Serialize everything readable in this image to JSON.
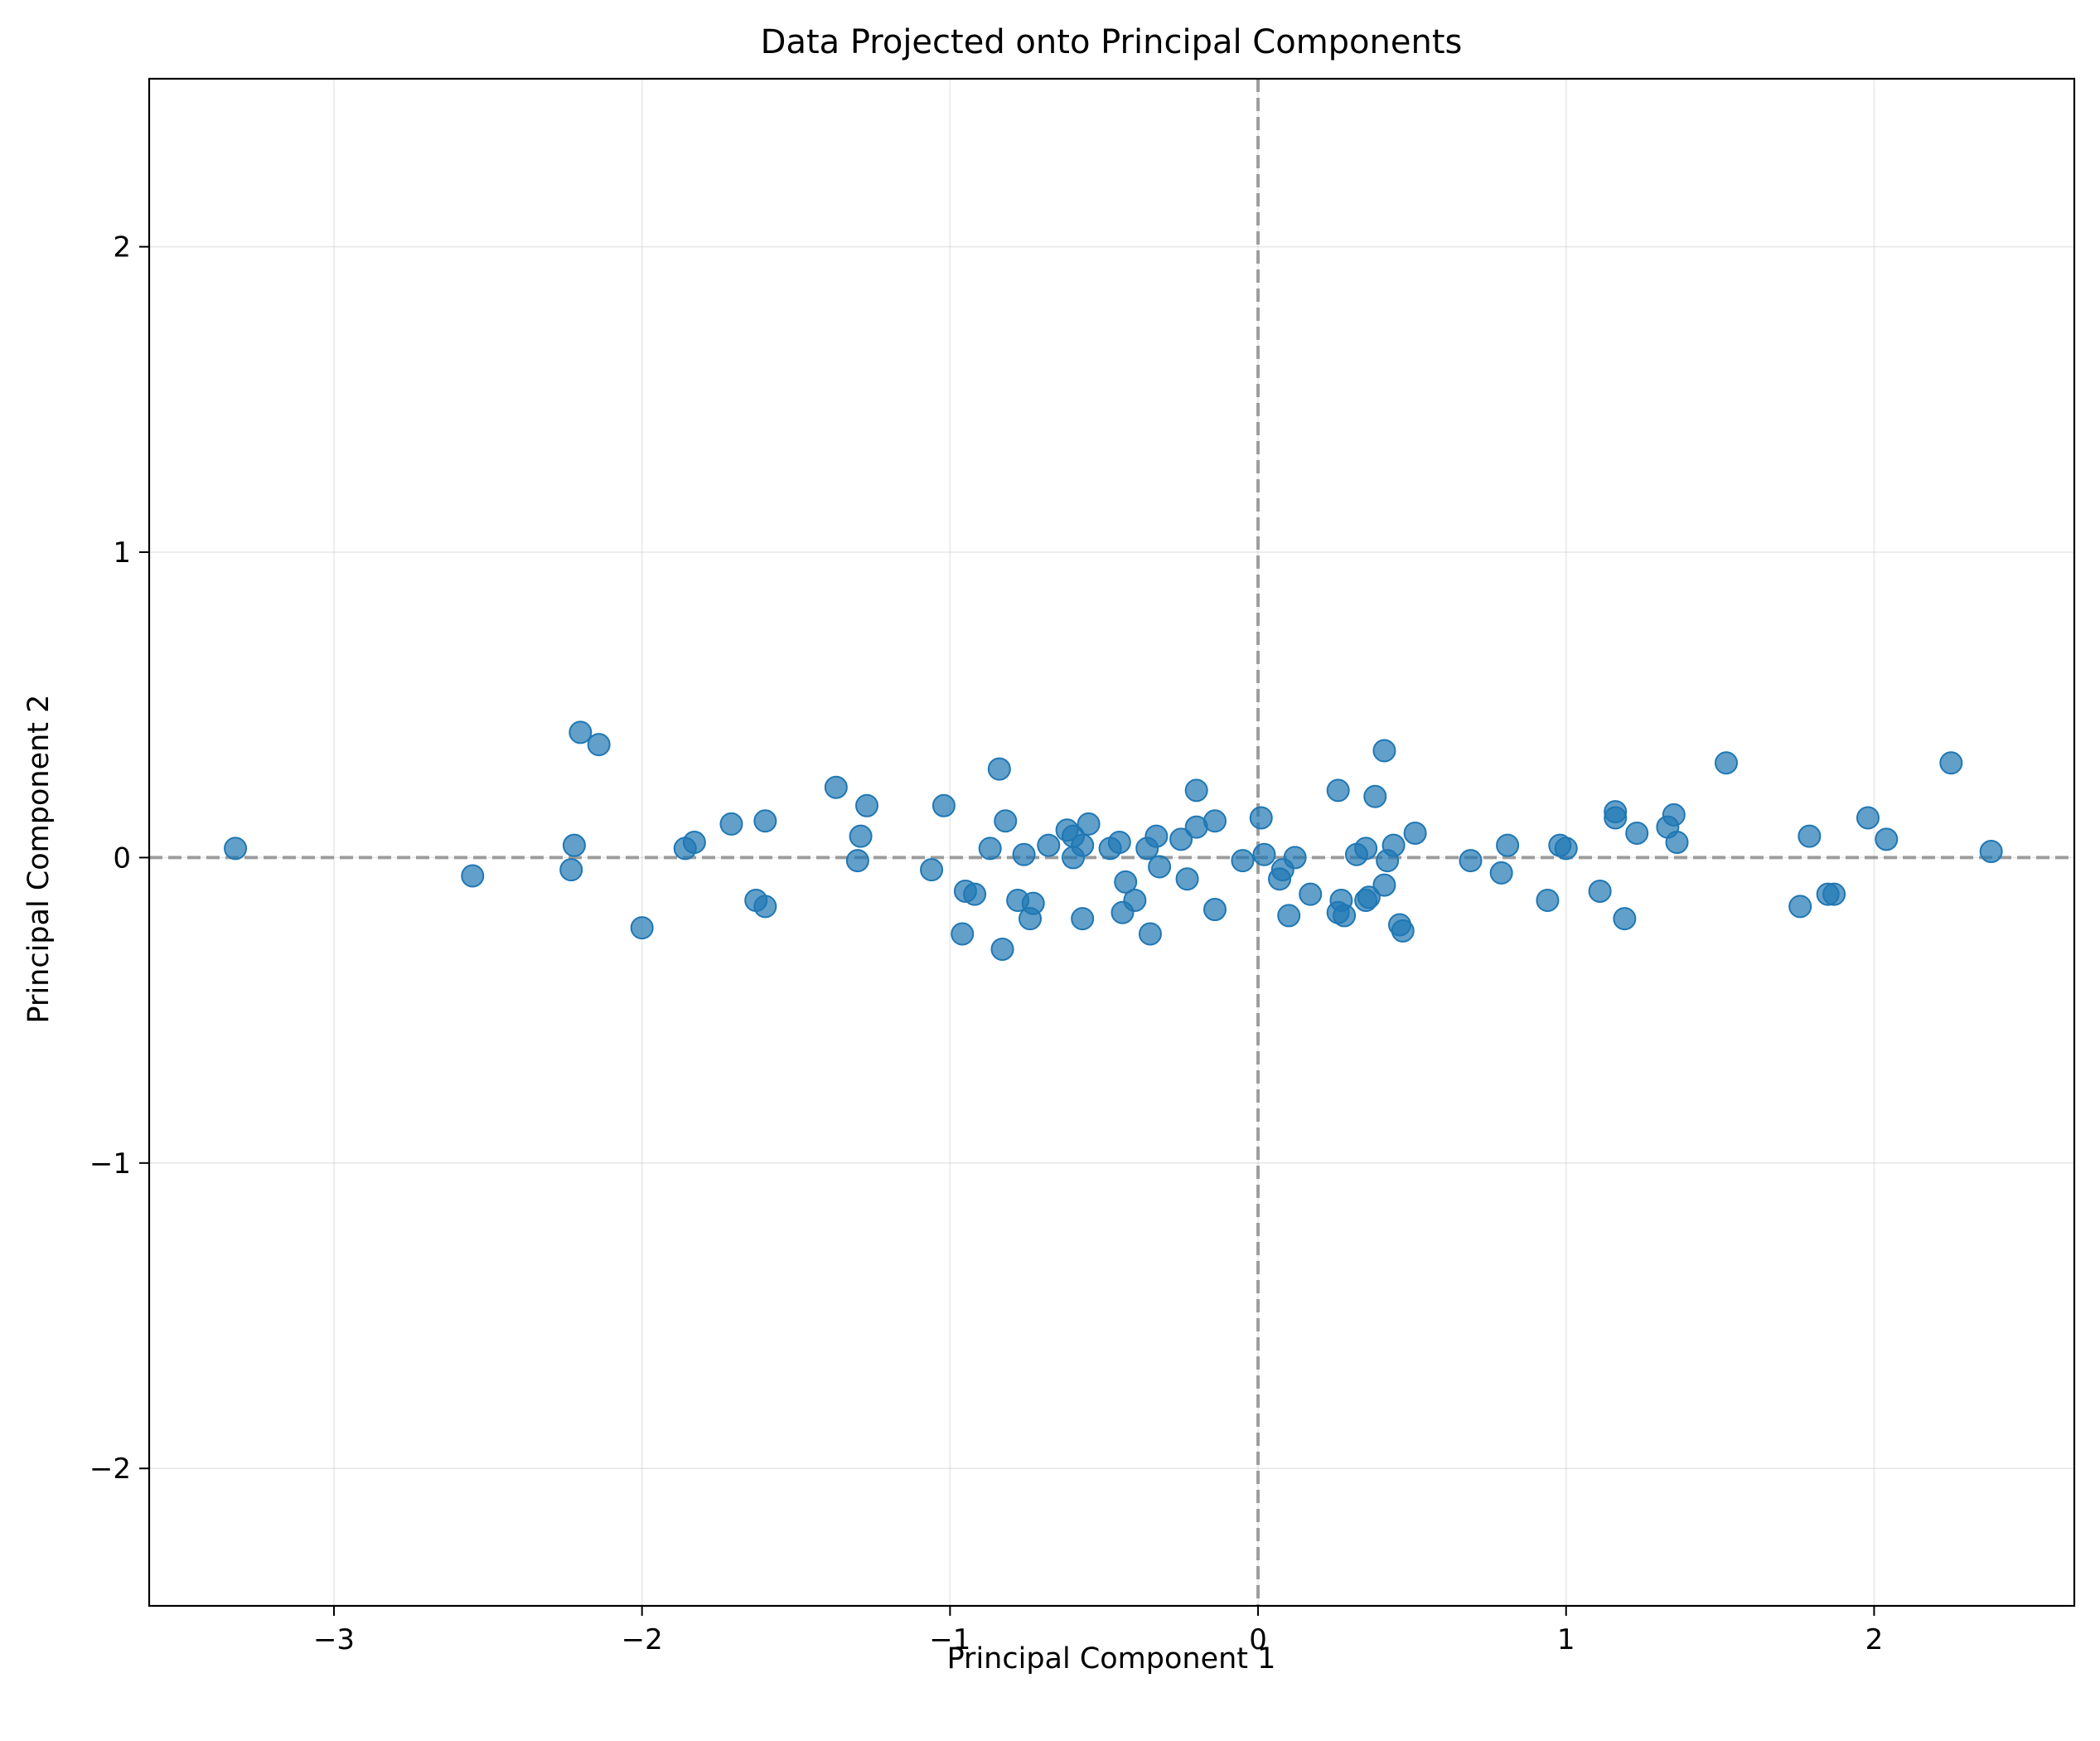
{
  "chart_data": {
    "type": "scatter",
    "title": "Data Projected onto Principal Components",
    "xlabel": "Principal Component 1",
    "ylabel": "Principal Component 2",
    "xlim": [
      -3.6,
      2.65
    ],
    "ylim": [
      -2.45,
      2.55
    ],
    "xticks": [
      -3,
      -2,
      -1,
      0,
      1,
      2
    ],
    "yticks": [
      -2,
      -1,
      0,
      1,
      2
    ],
    "xtick_labels": [
      "−3",
      "−2",
      "−1",
      "0",
      "1",
      "2"
    ],
    "ytick_labels": [
      "−2",
      "−1",
      "0",
      "1",
      "2"
    ],
    "grid": true,
    "reference_lines": {
      "x": 0,
      "y": 0,
      "style": "dashed",
      "color": "#808080"
    },
    "marker_color": "#1f77b4",
    "points": [
      [
        -3.32,
        0.03
      ],
      [
        -2.55,
        -0.06
      ],
      [
        -2.23,
        -0.04
      ],
      [
        -2.22,
        0.04
      ],
      [
        -2.2,
        0.41
      ],
      [
        -2.14,
        0.37
      ],
      [
        -2.0,
        -0.23
      ],
      [
        -1.86,
        0.03
      ],
      [
        -1.83,
        0.05
      ],
      [
        -1.71,
        0.11
      ],
      [
        -1.63,
        -0.14
      ],
      [
        -1.6,
        -0.16
      ],
      [
        -1.6,
        0.12
      ],
      [
        -1.37,
        0.23
      ],
      [
        -1.3,
        -0.01
      ],
      [
        -1.29,
        0.07
      ],
      [
        -1.27,
        0.17
      ],
      [
        -1.06,
        -0.04
      ],
      [
        -1.02,
        0.17
      ],
      [
        -0.96,
        -0.25
      ],
      [
        -0.95,
        -0.11
      ],
      [
        -0.92,
        -0.12
      ],
      [
        -0.87,
        0.03
      ],
      [
        -0.84,
        0.29
      ],
      [
        -0.83,
        -0.3
      ],
      [
        -0.82,
        0.12
      ],
      [
        -0.78,
        -0.14
      ],
      [
        -0.76,
        0.01
      ],
      [
        -0.74,
        -0.2
      ],
      [
        -0.73,
        -0.15
      ],
      [
        -0.68,
        0.04
      ],
      [
        -0.62,
        0.09
      ],
      [
        -0.6,
        0.07
      ],
      [
        -0.6,
        0.0
      ],
      [
        -0.57,
        -0.2
      ],
      [
        -0.57,
        0.04
      ],
      [
        -0.55,
        0.11
      ],
      [
        -0.48,
        0.03
      ],
      [
        -0.45,
        0.05
      ],
      [
        -0.44,
        -0.18
      ],
      [
        -0.43,
        -0.08
      ],
      [
        -0.4,
        -0.14
      ],
      [
        -0.36,
        0.03
      ],
      [
        -0.35,
        -0.25
      ],
      [
        -0.33,
        0.07
      ],
      [
        -0.32,
        -0.03
      ],
      [
        -0.25,
        0.06
      ],
      [
        -0.23,
        -0.07
      ],
      [
        -0.2,
        0.1
      ],
      [
        -0.2,
        0.22
      ],
      [
        -0.14,
        0.12
      ],
      [
        -0.14,
        -0.17
      ],
      [
        -0.05,
        -0.01
      ],
      [
        0.01,
        0.13
      ],
      [
        0.02,
        0.01
      ],
      [
        0.07,
        -0.07
      ],
      [
        0.08,
        -0.04
      ],
      [
        0.1,
        -0.19
      ],
      [
        0.12,
        0.0
      ],
      [
        0.17,
        -0.12
      ],
      [
        0.26,
        -0.18
      ],
      [
        0.26,
        0.22
      ],
      [
        0.27,
        -0.14
      ],
      [
        0.28,
        -0.19
      ],
      [
        0.32,
        0.01
      ],
      [
        0.35,
        -0.14
      ],
      [
        0.35,
        0.03
      ],
      [
        0.36,
        -0.13
      ],
      [
        0.38,
        0.2
      ],
      [
        0.41,
        -0.09
      ],
      [
        0.41,
        0.35
      ],
      [
        0.42,
        -0.01
      ],
      [
        0.44,
        0.04
      ],
      [
        0.46,
        -0.22
      ],
      [
        0.47,
        -0.24
      ],
      [
        0.51,
        0.08
      ],
      [
        0.69,
        -0.01
      ],
      [
        0.79,
        -0.05
      ],
      [
        0.81,
        0.04
      ],
      [
        0.94,
        -0.14
      ],
      [
        0.98,
        0.04
      ],
      [
        1.0,
        0.03
      ],
      [
        1.11,
        -0.11
      ],
      [
        1.16,
        0.13
      ],
      [
        1.16,
        0.15
      ],
      [
        1.19,
        -0.2
      ],
      [
        1.23,
        0.08
      ],
      [
        1.33,
        0.1
      ],
      [
        1.35,
        0.14
      ],
      [
        1.36,
        0.05
      ],
      [
        1.52,
        0.31
      ],
      [
        1.76,
        -0.16
      ],
      [
        1.79,
        0.07
      ],
      [
        1.85,
        -0.12
      ],
      [
        1.87,
        -0.12
      ],
      [
        1.98,
        0.13
      ],
      [
        2.04,
        0.06
      ],
      [
        2.25,
        0.31
      ],
      [
        2.38,
        0.02
      ]
    ]
  }
}
